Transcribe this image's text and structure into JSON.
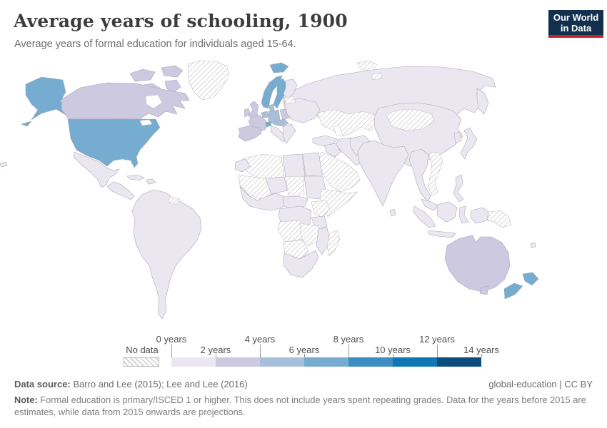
{
  "header": {
    "title": "Average years of schooling, 1900",
    "subtitle": "Average years of formal education for individuals aged 15-64.",
    "logo_line1": "Our World",
    "logo_line2": "in Data",
    "logo_bg_color": "#12304e",
    "logo_accent_color": "#c0262d"
  },
  "legend": {
    "no_data_label": "No data",
    "tick_labels_top": [
      "0 years",
      "4 years",
      "8 years",
      "12 years"
    ],
    "tick_labels_bottom": [
      "2 years",
      "6 years",
      "10 years",
      "14 years"
    ],
    "bucket_colors": [
      "#ebe7f1",
      "#cdc9e0",
      "#a9bedb",
      "#76acd0",
      "#3d8cc1",
      "#1076b4",
      "#0d4c7d"
    ]
  },
  "footer": {
    "source_label": "Data source:",
    "source_text": " Barro and Lee (2015); Lee and Lee (2016)",
    "license": "global-education | CC BY",
    "note_label": "Note:",
    "note_text": " Formal education is primary/ISCED 1 or higher. This does not include years spent repeating grades. Data for the years before 2015 are estimates, while data from 2015 onwards are projections."
  },
  "chart_data": {
    "type": "heatmap",
    "subtype": "choropleth_world_map",
    "title": "Average years of schooling, 1900",
    "unit": "years",
    "scale_domain": [
      0,
      14
    ],
    "scale_step": 2,
    "legend_labels": [
      "No data",
      "0 years",
      "2 years",
      "4 years",
      "6 years",
      "8 years",
      "10 years",
      "12 years",
      "14 years"
    ],
    "no_data_hatched": true,
    "regions_by_value": {
      "6-8 years": [
        "United States",
        "Norway",
        "Sweden",
        "Iceland",
        "Switzerland",
        "New Zealand"
      ],
      "4-6 years": [
        "Germany",
        "Denmark",
        "Netherlands",
        "Belgium",
        "Austria-Hungary"
      ],
      "2-4 years": [
        "Canada",
        "United Kingdom",
        "Ireland",
        "France",
        "Spain",
        "Portugal",
        "Poland",
        "Australia"
      ],
      "0-2 years": [
        "Russia",
        "China",
        "India",
        "Japan",
        "Italy",
        "Turkey",
        "Iran",
        "Egypt",
        "Mexico",
        "Brazil",
        "most of Africa, Asia and Latin America"
      ],
      "No data": [
        "Greenland",
        "Svalbard",
        "Baltic states",
        "Kazakhstan",
        "Central Asia",
        "Mongolia",
        "Saudi Arabia",
        "Yemen",
        "Ethiopia",
        "Somalia",
        "Kenya",
        "Chad",
        "Algeria",
        "Mauritania",
        "Mali",
        "Angola",
        "Zambia",
        "Zimbabwe",
        "Namibia",
        "Botswana",
        "Madagascar",
        "Vietnam",
        "Laos",
        "Papua New Guinea",
        "Guyana",
        "Suriname"
      ]
    }
  },
  "map": {
    "regions": [
      {
        "id": "russia",
        "bucket": 0
      },
      {
        "id": "kamchatka",
        "bucket": 0
      },
      {
        "id": "svalbard",
        "bucket": "nodata"
      },
      {
        "id": "greenland",
        "bucket": "nodata"
      },
      {
        "id": "arctic1",
        "bucket": 1
      },
      {
        "id": "arctic2",
        "bucket": 1
      },
      {
        "id": "arctic3",
        "bucket": 1
      },
      {
        "id": "arctic4",
        "bucket": 1
      },
      {
        "id": "alaska",
        "bucket": 3
      },
      {
        "id": "aleutians",
        "bucket": 3
      },
      {
        "id": "canada",
        "bucket": 1
      },
      {
        "id": "hudson-bay",
        "bucket": "water"
      },
      {
        "id": "usa",
        "bucket": 3
      },
      {
        "id": "great-lakes",
        "bucket": "water"
      },
      {
        "id": "mexico",
        "bucket": 0
      },
      {
        "id": "central-america",
        "bucket": 0
      },
      {
        "id": "cuba",
        "bucket": 0
      },
      {
        "id": "hispaniola",
        "bucket": 0
      },
      {
        "id": "south-america",
        "bucket": 0
      },
      {
        "id": "guyanas",
        "bucket": "nodata"
      },
      {
        "id": "iceland",
        "bucket": 3
      },
      {
        "id": "norway",
        "bucket": 3
      },
      {
        "id": "sweden",
        "bucket": 3
      },
      {
        "id": "finland",
        "bucket": 0
      },
      {
        "id": "denmark",
        "bucket": 2
      },
      {
        "id": "uk",
        "bucket": 1
      },
      {
        "id": "ireland",
        "bucket": 1
      },
      {
        "id": "benelux",
        "bucket": 2
      },
      {
        "id": "germany",
        "bucket": 2
      },
      {
        "id": "poland",
        "bucket": 1
      },
      {
        "id": "france",
        "bucket": 1
      },
      {
        "id": "switzerland",
        "bucket": 3
      },
      {
        "id": "austria-hungary",
        "bucket": 2
      },
      {
        "id": "iberia",
        "bucket": 1
      },
      {
        "id": "italy",
        "bucket": 0
      },
      {
        "id": "balkans",
        "bucket": 0
      },
      {
        "id": "east-europe",
        "bucket": 0
      },
      {
        "id": "baltics",
        "bucket": "nodata"
      },
      {
        "id": "kazakhstan",
        "bucket": "nodata"
      },
      {
        "id": "caspian-sea",
        "bucket": "water"
      },
      {
        "id": "turkey",
        "bucket": 0
      },
      {
        "id": "iran",
        "bucket": 0
      },
      {
        "id": "iraq-syria",
        "bucket": 0
      },
      {
        "id": "saudi-arabia",
        "bucket": "nodata"
      },
      {
        "id": "egypt",
        "bucket": 0
      },
      {
        "id": "libya",
        "bucket": 0
      },
      {
        "id": "algeria",
        "bucket": "nodata"
      },
      {
        "id": "morocco",
        "bucket": 0
      },
      {
        "id": "mauritania-mali",
        "bucket": "nodata"
      },
      {
        "id": "niger",
        "bucket": 0
      },
      {
        "id": "chad",
        "bucket": "nodata"
      },
      {
        "id": "sudan",
        "bucket": 0
      },
      {
        "id": "ethiopia-somalia",
        "bucket": "nodata"
      },
      {
        "id": "west-africa",
        "bucket": 0
      },
      {
        "id": "cameroon-car",
        "bucket": 0
      },
      {
        "id": "drc",
        "bucket": 0
      },
      {
        "id": "uganda-kenya",
        "bucket": "nodata"
      },
      {
        "id": "tanzania",
        "bucket": 0
      },
      {
        "id": "angola",
        "bucket": "nodata"
      },
      {
        "id": "zambia-zimbabwe",
        "bucket": "nodata"
      },
      {
        "id": "mozambique",
        "bucket": 0
      },
      {
        "id": "namibia-botswana",
        "bucket": "nodata"
      },
      {
        "id": "south-africa",
        "bucket": 0
      },
      {
        "id": "madagascar",
        "bucket": "nodata"
      },
      {
        "id": "china",
        "bucket": 0
      },
      {
        "id": "mongolia",
        "bucket": "nodata"
      },
      {
        "id": "japan",
        "bucket": 0
      },
      {
        "id": "korea",
        "bucket": 0
      },
      {
        "id": "pakistan-afghanistan",
        "bucket": 0
      },
      {
        "id": "india",
        "bucket": 0
      },
      {
        "id": "sri-lanka",
        "bucket": 0
      },
      {
        "id": "myanmar-thailand",
        "bucket": 0
      },
      {
        "id": "vietnam-laos",
        "bucket": "nodata"
      },
      {
        "id": "malaysia",
        "bucket": 0
      },
      {
        "id": "sumatra",
        "bucket": 0
      },
      {
        "id": "java",
        "bucket": 0
      },
      {
        "id": "borneo",
        "bucket": 0
      },
      {
        "id": "sulawesi",
        "bucket": 0
      },
      {
        "id": "philippines",
        "bucket": 0
      },
      {
        "id": "new-guinea-west",
        "bucket": 0
      },
      {
        "id": "papua-new-guinea",
        "bucket": "nodata"
      },
      {
        "id": "australia",
        "bucket": 1
      },
      {
        "id": "tasmania",
        "bucket": 1
      },
      {
        "id": "nz-north",
        "bucket": 3
      },
      {
        "id": "nz-south",
        "bucket": 3
      },
      {
        "id": "fiji",
        "bucket": 0
      },
      {
        "id": "left-islet",
        "bucket": 0
      }
    ]
  }
}
